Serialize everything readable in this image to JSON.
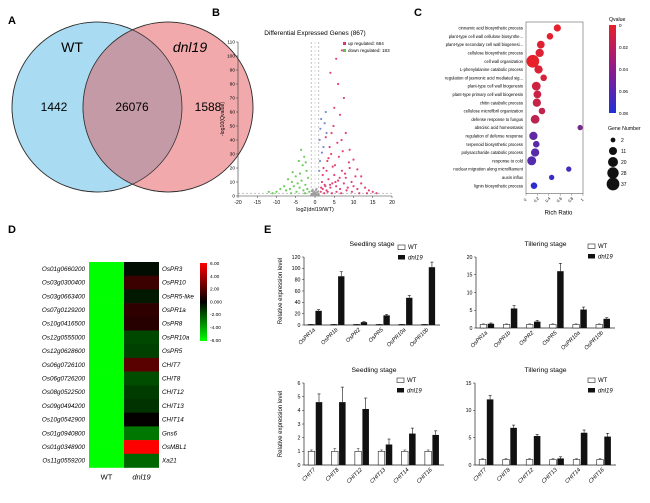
{
  "panel_labels": {
    "a": "A",
    "b": "B",
    "c": "C",
    "d": "D",
    "e": "E"
  },
  "venn": {
    "left_label": "WT",
    "right_label": "dnl19",
    "left_only": "1442",
    "overlap": "26076",
    "right_only": "1588",
    "left_color": "#a9dcf2",
    "right_color": "#f2a9ab",
    "overlap_color": "#c49aa6"
  },
  "chart_data": [
    {
      "type": "scatter",
      "title": "Differential Expressed Genes (867)",
      "xlabel": "log2(dnl19/WT)",
      "ylabel": "-log10(Qvalue)",
      "xlim": [
        -20,
        20
      ],
      "ylim": [
        0,
        110
      ],
      "xticks": [
        -20,
        -15,
        -10,
        -5,
        0,
        5,
        10,
        15,
        20
      ],
      "yticks": [
        0,
        10,
        20,
        30,
        40,
        50,
        60,
        70,
        80,
        90,
        100,
        110
      ],
      "legend": [
        {
          "name": "up regulated: 684",
          "color": "#e0306a"
        },
        {
          "name": "down regulated: 183",
          "color": "#5cc44a"
        }
      ],
      "series": [
        {
          "name": "up regulated: 684",
          "color": "#e0306a",
          "points": [
            [
              1.5,
              3
            ],
            [
              2,
              5
            ],
            [
              2.5,
              8
            ],
            [
              3,
              4
            ],
            [
              3.5,
              12
            ],
            [
              4,
              6
            ],
            [
              4.5,
              9
            ],
            [
              5,
              15
            ],
            [
              5.5,
              7
            ],
            [
              6,
              11
            ],
            [
              6.5,
              5
            ],
            [
              7,
              18
            ],
            [
              7.5,
              9
            ],
            [
              8,
              13
            ],
            [
              8.5,
              6
            ],
            [
              9,
              20
            ],
            [
              9.5,
              10
            ],
            [
              10,
              7
            ],
            [
              10.5,
              14
            ],
            [
              11,
              5
            ],
            [
              12,
              9
            ],
            [
              13,
              6
            ],
            [
              14,
              4
            ],
            [
              2.2,
              20
            ],
            [
              3.2,
              25
            ],
            [
              4.2,
              30
            ],
            [
              5.2,
              22
            ],
            [
              6.2,
              28
            ],
            [
              3.8,
              35
            ],
            [
              5.8,
              38
            ],
            [
              2.8,
              42
            ],
            [
              4.8,
              50
            ],
            [
              6.5,
              58
            ],
            [
              5,
              63
            ],
            [
              7.5,
              70
            ],
            [
              6,
              80
            ],
            [
              4,
              88
            ],
            [
              5.5,
              98
            ],
            [
              7,
              104
            ],
            [
              8,
              45
            ],
            [
              9,
              33
            ],
            [
              10,
              26
            ],
            [
              11,
              19
            ],
            [
              12,
              14
            ],
            [
              2,
              15
            ],
            [
              3,
              18
            ],
            [
              1.8,
              10
            ],
            [
              2.4,
              2
            ],
            [
              3.3,
              3
            ],
            [
              4.4,
              2
            ],
            [
              5.6,
              3
            ],
            [
              6.8,
              2
            ],
            [
              8.2,
              4
            ],
            [
              9.6,
              3
            ],
            [
              11.5,
              2
            ],
            [
              13.5,
              2
            ],
            [
              15,
              3
            ],
            [
              16,
              2
            ],
            [
              1.6,
              6
            ],
            [
              2.7,
              7
            ],
            [
              3.9,
              8
            ],
            [
              5.3,
              10
            ],
            [
              6.4,
              13
            ],
            [
              7.8,
              16
            ],
            [
              4.6,
              21
            ],
            [
              3.5,
              27
            ],
            [
              8.8,
              24
            ],
            [
              7.2,
              32
            ],
            [
              6.9,
              40
            ],
            [
              4.3,
              45
            ]
          ]
        },
        {
          "name": "down regulated: 183",
          "color": "#5cc44a",
          "points": [
            [
              -1.5,
              3
            ],
            [
              -2,
              5
            ],
            [
              -2.5,
              8
            ],
            [
              -3,
              4
            ],
            [
              -3.5,
              11
            ],
            [
              -4,
              6
            ],
            [
              -4.5,
              9
            ],
            [
              -5,
              14
            ],
            [
              -5.5,
              7
            ],
            [
              -6,
              10
            ],
            [
              -6.5,
              5
            ],
            [
              -7,
              12
            ],
            [
              -7.5,
              4
            ],
            [
              -8,
              7
            ],
            [
              -9,
              5
            ],
            [
              -10,
              3
            ],
            [
              -2.2,
              18
            ],
            [
              -3.2,
              22
            ],
            [
              -4.2,
              25
            ],
            [
              -2.8,
              28
            ],
            [
              -3.6,
              33
            ],
            [
              -1.8,
              13
            ],
            [
              -2.6,
              2
            ],
            [
              -4.8,
              3
            ],
            [
              -6.2,
              2
            ],
            [
              -11,
              2
            ],
            [
              -12,
              3
            ],
            [
              -5.8,
              17
            ],
            [
              -3.9,
              16
            ],
            [
              -2.4,
              24
            ]
          ]
        },
        {
          "name": "",
          "color": "#7080d0",
          "points": [
            [
              1.2,
              40
            ],
            [
              1.4,
              48
            ],
            [
              1.6,
              55
            ],
            [
              2.2,
              35
            ],
            [
              1.8,
              31
            ],
            [
              2.8,
              60
            ],
            [
              1.3,
              25
            ],
            [
              2.5,
              52
            ],
            [
              3,
              45
            ],
            [
              1.1,
              18
            ]
          ]
        },
        {
          "name": "",
          "color": "#9a9a9a",
          "points": [
            [
              -0.8,
              1
            ],
            [
              -0.5,
              2
            ],
            [
              -0.3,
              0.5
            ],
            [
              0,
              1.5
            ],
            [
              0.3,
              1
            ],
            [
              0.6,
              2.5
            ],
            [
              0.9,
              1
            ],
            [
              -0.2,
              3
            ],
            [
              0.2,
              4
            ],
            [
              -0.7,
              3.5
            ],
            [
              0.5,
              0.8
            ],
            [
              -0.4,
              1.2
            ],
            [
              0.7,
              3
            ],
            [
              -1,
              0.5
            ],
            [
              1,
              0.4
            ],
            [
              0.1,
              2.2
            ],
            [
              -0.6,
              4.5
            ],
            [
              0.4,
              5
            ]
          ]
        }
      ],
      "thresholds": {
        "fold_change": [
          -1,
          1
        ],
        "qvalue": 2
      }
    },
    {
      "type": "scatter",
      "xlabel": "Rich Ratio",
      "xlim": [
        0,
        1
      ],
      "xticks": [
        "0",
        "0.2",
        "0.4",
        "0.6",
        "0.8",
        "1"
      ],
      "colorbar": {
        "title": "Qvalue",
        "ticks": [
          "0",
          "0.02",
          "0.04",
          "0.06",
          "0.08"
        ],
        "low_color": "#e8202a",
        "high_color": "#2030d8"
      },
      "size_legend": {
        "title": "Gene Number",
        "values": [
          "2",
          "11",
          "20",
          "28",
          "37"
        ]
      },
      "terms": [
        "cinnamic acid biosynthetic process",
        "plant-type cell wall cellulose biosynthe...",
        "plant-type secondary cell wall biogenesi...",
        "cellulose biosynthetic process",
        "cell wall organization",
        "L-phenylalanine catabolic process",
        "regulation of jasmonic acid mediated sig...",
        "plant-type cell wall biogenesis",
        "plant-type primary cell wall biogenesis",
        "chitin catabolic process",
        "cellulose microfibril organization",
        "defense response to fungus",
        "abscisic acid homeostasis",
        "regulation of defense response",
        "terpenoid biosynthetic process",
        "polysaccharide catabolic process",
        "response to cold",
        "nuclear migration along microfilament",
        "auxin influx",
        "lignin biosynthetic process"
      ],
      "rich_ratio": [
        0.55,
        0.42,
        0.26,
        0.24,
        0.12,
        0.22,
        0.31,
        0.18,
        0.2,
        0.19,
        0.28,
        0.16,
        0.95,
        0.13,
        0.18,
        0.16,
        0.1,
        0.75,
        0.45,
        0.14
      ],
      "gene_number": [
        8,
        6,
        10,
        12,
        37,
        12,
        6,
        14,
        10,
        12,
        6,
        14,
        3,
        12,
        6,
        12,
        15,
        3,
        3,
        6
      ],
      "qvalue": [
        0.001,
        0.002,
        0.004,
        0.004,
        0.0,
        0.006,
        0.008,
        0.01,
        0.012,
        0.014,
        0.016,
        0.018,
        0.045,
        0.055,
        0.057,
        0.058,
        0.06,
        0.065,
        0.07,
        0.075
      ]
    },
    {
      "type": "heatmap",
      "columns": [
        "WT",
        "dnl19"
      ],
      "row_ids": [
        "Os01g0660200",
        "Os03g0300400",
        "Os03g0663400",
        "Os07g0129200",
        "Os10g0416500",
        "Os12g0555000",
        "Os12g0628600",
        "Os06g0726100",
        "Os06g0726200",
        "Os08g0522500",
        "Os09g0494200",
        "Os10g0542900",
        "Os01g0940800",
        "Os01g0348900",
        "Os11g0559200"
      ],
      "row_genes": [
        "OsPR3",
        "OsPR10",
        "OsPR5-like",
        "OsPR1a",
        "OsPR8",
        "OsPR10a",
        "OsPR5",
        "CHIT7",
        "CHIT8",
        "CHIT12",
        "CHIT13",
        "CHIT14",
        "Gns6",
        "OsMBL1",
        "Xa21"
      ],
      "values_wt": [
        -6,
        -6,
        -6,
        -6,
        -6,
        -6,
        -6,
        -6,
        -6,
        -6,
        -6,
        -6,
        -6,
        -6,
        -6
      ],
      "values_dnl19": [
        -0.3,
        1.4,
        -0.6,
        1.1,
        0.9,
        -1.7,
        -1.5,
        2.1,
        -1.8,
        -1.4,
        -1.2,
        0.1,
        -2.8,
        6,
        -2.4
      ],
      "colorbar_ticks": [
        "6.00",
        "4.00",
        "2.00",
        "0.000",
        "-2.00",
        "-4.00",
        "-6.00"
      ],
      "range": [
        -6,
        6
      ]
    },
    {
      "type": "bar",
      "title": "Seedling stage",
      "ylabel": "Relative expression level",
      "ylim": [
        0,
        120
      ],
      "yticks": [
        0,
        20,
        40,
        60,
        80,
        100,
        120
      ],
      "categories": [
        "OsPR1a",
        "OsPR1b",
        "OsPR2",
        "OsPR5",
        "OsPR10a",
        "OsPR10b"
      ],
      "series": [
        {
          "name": "WT",
          "values": [
            1,
            1,
            1,
            1,
            1,
            1
          ],
          "errors": [
            0.3,
            0.3,
            0.3,
            0.3,
            0.3,
            0.3
          ]
        },
        {
          "name": "dnl19",
          "values": [
            25,
            86,
            5,
            17,
            48,
            102
          ],
          "errors": [
            2,
            8,
            1,
            1.5,
            4,
            9
          ]
        }
      ]
    },
    {
      "type": "bar",
      "title": "Tillering stage",
      "ylim": [
        0,
        20
      ],
      "yticks": [
        0,
        5,
        10,
        15,
        20
      ],
      "categories": [
        "OsPR1a",
        "OsPR1b",
        "OsPR2",
        "OsPR5",
        "OsPR10a",
        "OsPR10b"
      ],
      "series": [
        {
          "name": "WT",
          "values": [
            1,
            1,
            1,
            1,
            1,
            1
          ],
          "errors": [
            0.15,
            0.15,
            0.15,
            0.15,
            0.15,
            0.15
          ]
        },
        {
          "name": "dnl19",
          "values": [
            1.2,
            5.5,
            1.8,
            16,
            5.2,
            2.6
          ],
          "errors": [
            0.2,
            0.8,
            0.3,
            2.2,
            0.7,
            0.3
          ]
        }
      ]
    },
    {
      "type": "bar",
      "title": "Seedling stage",
      "ylabel": "Relative expression level",
      "ylim": [
        0,
        6
      ],
      "yticks": [
        0,
        1,
        2,
        3,
        4,
        5,
        6
      ],
      "categories": [
        "CHIT7",
        "CHIT8",
        "CHIT12",
        "CHIT13",
        "CHIT14",
        "CHIT16"
      ],
      "series": [
        {
          "name": "WT",
          "values": [
            1,
            1,
            1,
            1,
            1,
            1
          ],
          "errors": [
            0.1,
            0.2,
            0.2,
            0.1,
            0.1,
            0.1
          ]
        },
        {
          "name": "dnl19",
          "values": [
            4.6,
            4.6,
            4.1,
            1.5,
            2.3,
            2.2
          ],
          "errors": [
            0.6,
            1.1,
            0.8,
            0.4,
            0.4,
            0.3
          ]
        }
      ]
    },
    {
      "type": "bar",
      "title": "Tillering stage",
      "ylim": [
        0,
        15
      ],
      "yticks": [
        0,
        5,
        10,
        15
      ],
      "categories": [
        "CHIT7",
        "CHIT8",
        "CHIT12",
        "CHIT13",
        "CHIT14",
        "CHIT16"
      ],
      "series": [
        {
          "name": "WT",
          "values": [
            1,
            1,
            1,
            1,
            1,
            1
          ],
          "errors": [
            0.15,
            0.15,
            0.15,
            0.15,
            0.15,
            0.15
          ]
        },
        {
          "name": "dnl19",
          "values": [
            12,
            6.8,
            5.3,
            1.2,
            5.9,
            5.2
          ],
          "errors": [
            0.7,
            0.5,
            0.3,
            0.3,
            0.5,
            0.6
          ]
        }
      ]
    }
  ]
}
